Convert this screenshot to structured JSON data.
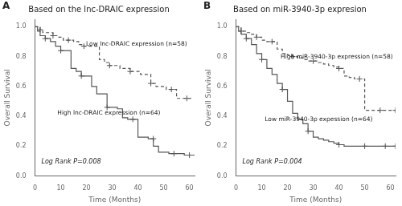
{
  "chart_data": [
    {
      "type": "line",
      "title": "Based on the lnc-DRAIC expression",
      "xlabel": "Time (Months)",
      "ylabel": "Overall Survival",
      "annotations": [
        "A",
        "Low lnc-DRAIC expression (n=58)",
        "High lnc-DRAIC expression (n=64)",
        "Log Rank P=0.008"
      ],
      "xlim": [
        0,
        62
      ],
      "ylim": [
        0,
        1.05
      ],
      "xticks": [
        0,
        10,
        20,
        30,
        40,
        50,
        60
      ],
      "yticks": [
        {
          "value": 0,
          "label": "0.0"
        },
        0.2,
        0.4,
        0.6,
        0.8,
        {
          "value": 1,
          "label": "1.0"
        }
      ],
      "grid": false,
      "series": [
        {
          "type": "step",
          "line_style": "dashed",
          "color": "#555555",
          "x": [
            0,
            1,
            2,
            3,
            5,
            7,
            9,
            11,
            13,
            15,
            17,
            19,
            21,
            23,
            25,
            27,
            29,
            31,
            33,
            35,
            37,
            39,
            41,
            43,
            45,
            47,
            49,
            51,
            53,
            55,
            57,
            59,
            61
          ],
          "values": [
            1.0,
            1.0,
            0.98,
            0.96,
            0.96,
            0.94,
            0.93,
            0.91,
            0.91,
            0.9,
            0.88,
            0.87,
            0.87,
            0.87,
            0.78,
            0.76,
            0.74,
            0.74,
            0.72,
            0.72,
            0.7,
            0.7,
            0.68,
            0.68,
            0.62,
            0.6,
            0.6,
            0.58,
            0.58,
            0.52,
            0.52,
            0.52,
            0.52
          ]
        },
        {
          "type": "step",
          "line_style": "solid",
          "color": "#555555",
          "x": [
            0,
            1,
            2,
            4,
            6,
            8,
            10,
            12,
            14,
            16,
            18,
            20,
            22,
            24,
            26,
            28,
            30,
            32,
            34,
            36,
            38,
            40,
            42,
            44,
            46,
            48,
            50,
            52,
            54,
            56,
            58,
            60,
            62
          ],
          "values": [
            1.0,
            0.97,
            0.94,
            0.92,
            0.9,
            0.87,
            0.84,
            0.84,
            0.72,
            0.7,
            0.67,
            0.67,
            0.6,
            0.55,
            0.55,
            0.46,
            0.46,
            0.45,
            0.39,
            0.38,
            0.38,
            0.26,
            0.26,
            0.25,
            0.2,
            0.16,
            0.16,
            0.15,
            0.15,
            0.15,
            0.14,
            0.14,
            0.14
          ]
        },
        {
          "type": "scatter",
          "marker": "+",
          "color": "#555555",
          "x": [
            2,
            7,
            13,
            19,
            29,
            37,
            45,
            53,
            59
          ],
          "values": [
            0.98,
            0.94,
            0.91,
            0.87,
            0.74,
            0.7,
            0.62,
            0.58,
            0.52
          ]
        },
        {
          "type": "scatter",
          "marker": "+",
          "color": "#555555",
          "x": [
            4,
            10,
            18,
            28,
            38,
            46,
            54,
            60
          ],
          "values": [
            0.92,
            0.84,
            0.67,
            0.46,
            0.38,
            0.25,
            0.15,
            0.14
          ]
        }
      ]
    },
    {
      "type": "line",
      "title": "Based on miR-3940-3p expresion",
      "xlabel": "Time (Months)",
      "ylabel": "Overall Survival",
      "annotations": [
        "B",
        "High miR-3940-3p expression (n=58)",
        "Low miR-3940-3p expession (n=64)",
        "Log Rank P=0.004"
      ],
      "xlim": [
        0,
        62
      ],
      "ylim": [
        0,
        1.05
      ],
      "xticks": [
        0,
        10,
        20,
        30,
        40,
        50,
        60
      ],
      "yticks": [
        {
          "value": 0,
          "label": "0.0"
        },
        0.2,
        0.4,
        0.6,
        0.8,
        {
          "value": 1,
          "label": "1.0"
        }
      ],
      "grid": false,
      "series": [
        {
          "type": "step",
          "line_style": "dashed",
          "color": "#555555",
          "x": [
            0,
            1,
            2,
            4,
            6,
            8,
            10,
            12,
            14,
            16,
            18,
            20,
            22,
            24,
            26,
            28,
            30,
            32,
            34,
            36,
            38,
            40,
            42,
            44,
            46,
            48,
            50,
            52,
            54,
            56,
            58,
            60,
            62
          ],
          "values": [
            1.0,
            1.0,
            0.97,
            0.96,
            0.95,
            0.93,
            0.91,
            0.9,
            0.9,
            0.85,
            0.82,
            0.81,
            0.8,
            0.79,
            0.78,
            0.77,
            0.77,
            0.76,
            0.75,
            0.74,
            0.73,
            0.72,
            0.67,
            0.66,
            0.65,
            0.65,
            0.44,
            0.44,
            0.44,
            0.44,
            0.44,
            0.44,
            0.44
          ]
        },
        {
          "type": "step",
          "line_style": "solid",
          "color": "#555555",
          "x": [
            0,
            1,
            2,
            4,
            6,
            8,
            10,
            12,
            14,
            16,
            18,
            20,
            22,
            24,
            26,
            28,
            30,
            32,
            34,
            36,
            38,
            40,
            42,
            44,
            46,
            48,
            50,
            52,
            54,
            56,
            58,
            60,
            62
          ],
          "values": [
            1.0,
            0.97,
            0.95,
            0.92,
            0.88,
            0.82,
            0.78,
            0.72,
            0.68,
            0.62,
            0.58,
            0.5,
            0.42,
            0.38,
            0.35,
            0.3,
            0.26,
            0.25,
            0.24,
            0.23,
            0.22,
            0.21,
            0.2,
            0.2,
            0.2,
            0.2,
            0.2,
            0.2,
            0.2,
            0.2,
            0.2,
            0.2,
            0.2
          ]
        },
        {
          "type": "scatter",
          "marker": "+",
          "color": "#555555",
          "x": [
            2,
            8,
            14,
            22,
            30,
            40,
            48,
            56,
            62
          ],
          "values": [
            0.97,
            0.93,
            0.9,
            0.8,
            0.77,
            0.72,
            0.65,
            0.44,
            0.44
          ]
        },
        {
          "type": "scatter",
          "marker": "+",
          "color": "#555555",
          "x": [
            4,
            10,
            18,
            28,
            40,
            50,
            58,
            62
          ],
          "values": [
            0.92,
            0.78,
            0.58,
            0.3,
            0.21,
            0.2,
            0.2,
            0.2
          ]
        }
      ]
    }
  ]
}
